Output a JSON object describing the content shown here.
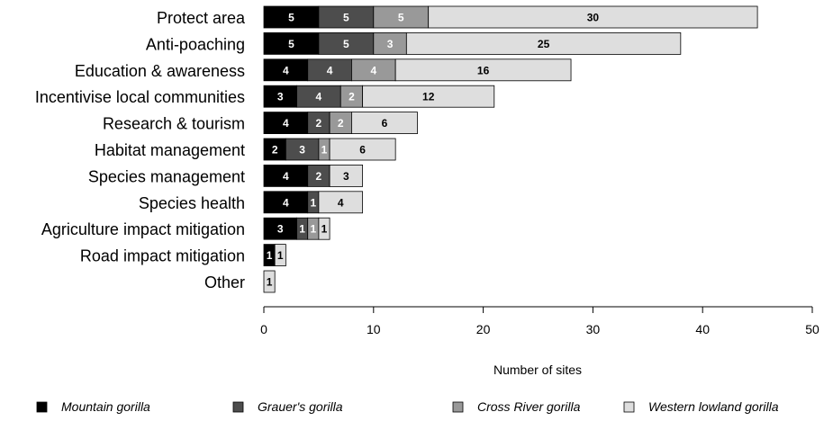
{
  "chart_data": {
    "type": "bar",
    "orientation": "horizontal",
    "stacked": true,
    "categories": [
      "Protect area",
      "Anti-poaching",
      "Education & awareness",
      "Incentivise local communities",
      "Research & tourism",
      "Habitat management",
      "Species management",
      "Species health",
      "Agriculture impact mitigation",
      "Road impact mitigation",
      "Other"
    ],
    "series": [
      {
        "name": "Mountain gorilla",
        "color": "#000000",
        "label_color": "#ffffff",
        "values": [
          5,
          5,
          4,
          3,
          4,
          2,
          4,
          4,
          3,
          1,
          0
        ]
      },
      {
        "name": "Grauer's gorilla",
        "color": "#4d4d4d",
        "label_color": "#ffffff",
        "values": [
          5,
          5,
          4,
          4,
          2,
          3,
          2,
          1,
          1,
          0,
          0
        ]
      },
      {
        "name": "Cross River gorilla",
        "color": "#999999",
        "label_color": "#ffffff",
        "values": [
          5,
          3,
          4,
          2,
          2,
          1,
          0,
          0,
          1,
          0,
          0
        ]
      },
      {
        "name": "Western lowland gorilla",
        "color": "#dedede",
        "label_color": "#000000",
        "values": [
          30,
          25,
          16,
          12,
          6,
          6,
          3,
          4,
          1,
          1,
          1
        ]
      }
    ],
    "xlabel": "Number of sites",
    "xlim": [
      0,
      50
    ],
    "xticks": [
      0,
      10,
      20,
      30,
      40,
      50
    ],
    "grid": false,
    "legend_position": "bottom"
  }
}
